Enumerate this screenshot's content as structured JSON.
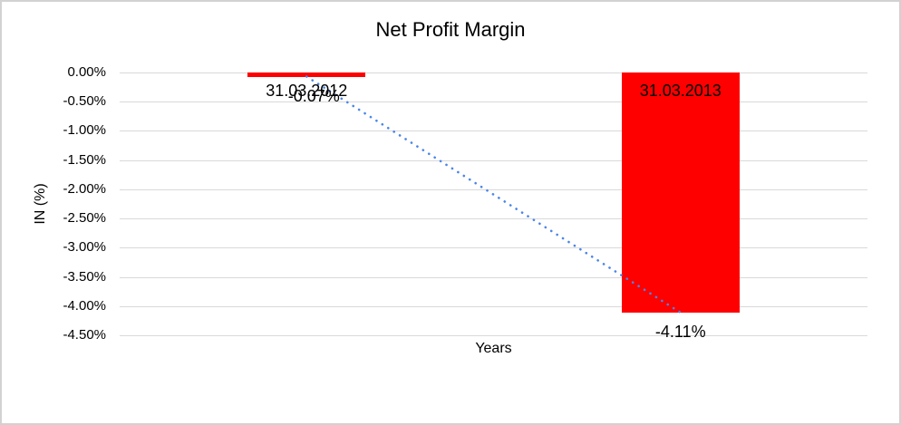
{
  "frame": {
    "background_color": "#ffffff",
    "border_color": "#d2d2d2"
  },
  "chart_data": {
    "type": "bar",
    "title": "Net Profit Margin",
    "xlabel": "Years",
    "ylabel": "IN (%)",
    "categories": [
      "31.03.2012",
      "31.03.2013"
    ],
    "values": [
      -0.07,
      -4.11
    ],
    "data_labels": [
      "-0.07%",
      "-4.11%"
    ],
    "ylim": [
      -4.5,
      0
    ],
    "ytick_labels": [
      "0.00%",
      "-0.50%",
      "-1.00%",
      "-1.50%",
      "-2.00%",
      "-2.50%",
      "-3.00%",
      "-3.50%",
      "-4.00%",
      "-4.50%"
    ],
    "grid": true,
    "legend_position": "none",
    "bar_color": "#ff0000",
    "gridline_color": "#d9d9d9",
    "text_color": "#000000",
    "trendline": {
      "type": "linear",
      "style": "dotted",
      "color": "#4a86e8",
      "connects": [
        "-0.07%",
        "-4.11%"
      ]
    }
  }
}
